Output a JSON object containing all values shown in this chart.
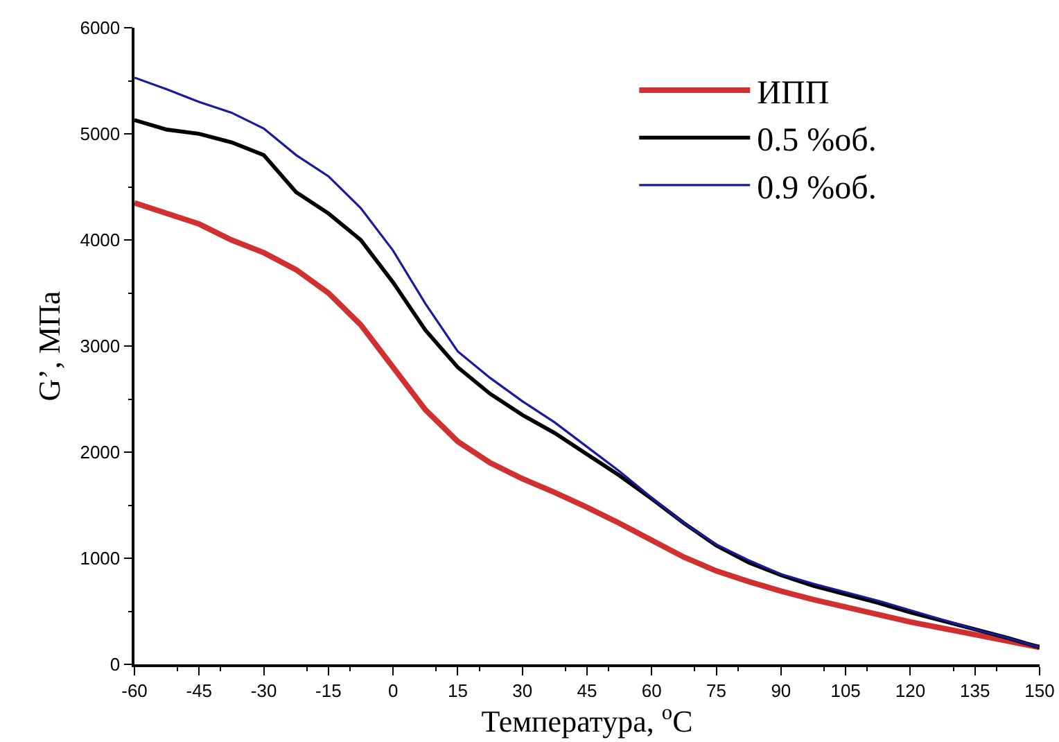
{
  "chart_data": {
    "type": "line",
    "xlabel": "Температура, $^{o}$C",
    "ylabel": "G’, МПа",
    "x": [
      -60,
      -52.5,
      -45,
      -37.5,
      -30,
      -22.5,
      -15,
      -7.5,
      0,
      7.5,
      15,
      22.5,
      30,
      37.5,
      45,
      52.5,
      60,
      67.5,
      75,
      82.5,
      90,
      97.5,
      105,
      112.5,
      120,
      127.5,
      135,
      142.5,
      150
    ],
    "series": [
      {
        "name": "ИПП",
        "color": "#d03030",
        "values": [
          4350,
          4250,
          4150,
          4000,
          3880,
          3720,
          3500,
          3200,
          2800,
          2400,
          2100,
          1900,
          1750,
          1620,
          1480,
          1330,
          1170,
          1010,
          880,
          780,
          690,
          610,
          540,
          470,
          400,
          340,
          280,
          220,
          160
        ]
      },
      {
        "name": "0.5 %об.",
        "color": "#000000",
        "values": [
          5130,
          5040,
          5000,
          4920,
          4800,
          4450,
          4250,
          4000,
          3600,
          3150,
          2800,
          2550,
          2350,
          2180,
          1980,
          1780,
          1560,
          1330,
          1120,
          960,
          840,
          740,
          660,
          580,
          490,
          410,
          330,
          250,
          160
        ]
      },
      {
        "name": "0.9 %об.",
        "color": "#1a1a9a",
        "values": [
          5530,
          5420,
          5300,
          5200,
          5050,
          4800,
          4600,
          4300,
          3900,
          3400,
          2950,
          2700,
          2480,
          2280,
          2050,
          1820,
          1570,
          1330,
          1130,
          980,
          850,
          760,
          680,
          600,
          510,
          420,
          330,
          250,
          160
        ]
      }
    ],
    "xlim": [
      -60,
      150
    ],
    "xticks": [
      -60,
      -45,
      -30,
      -15,
      0,
      15,
      30,
      45,
      60,
      75,
      90,
      105,
      120,
      135,
      150
    ],
    "ylim": [
      0,
      6000
    ],
    "yticks": [
      0,
      1000,
      2000,
      3000,
      4000,
      5000,
      6000
    ],
    "grid": false,
    "legend": "top right",
    "marker": "none",
    "line_style": "solid"
  }
}
